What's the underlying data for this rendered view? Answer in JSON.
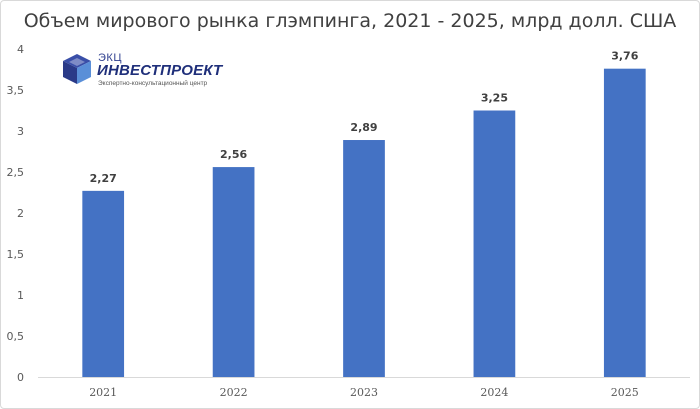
{
  "chart_data": {
    "type": "bar",
    "title": "Объем мирового рынка глэмпинга, 2021 - 2025, млрд долл. США",
    "categories": [
      "2021",
      "2022",
      "2023",
      "2024",
      "2025"
    ],
    "values": [
      2.27,
      2.56,
      2.89,
      3.25,
      3.76
    ],
    "value_labels": [
      "2,27",
      "2,56",
      "2,89",
      "3,25",
      "3,76"
    ],
    "ylim": [
      0,
      4
    ],
    "yticks": [
      0,
      0.5,
      1,
      1.5,
      2,
      2.5,
      3,
      3.5,
      4
    ],
    "ytick_labels": [
      "0",
      "0,5",
      "1",
      "1,5",
      "2",
      "2,5",
      "3",
      "3,5",
      "4"
    ],
    "xlabel": "",
    "ylabel": "",
    "grid": false,
    "bar_color": "#4472c4",
    "legend": "none"
  },
  "logo": {
    "top_text": "ЭКЦ",
    "main_text": "ИНВЕСТПРОЕКТ",
    "sub_text": "Экспертно-консультационный центр"
  }
}
